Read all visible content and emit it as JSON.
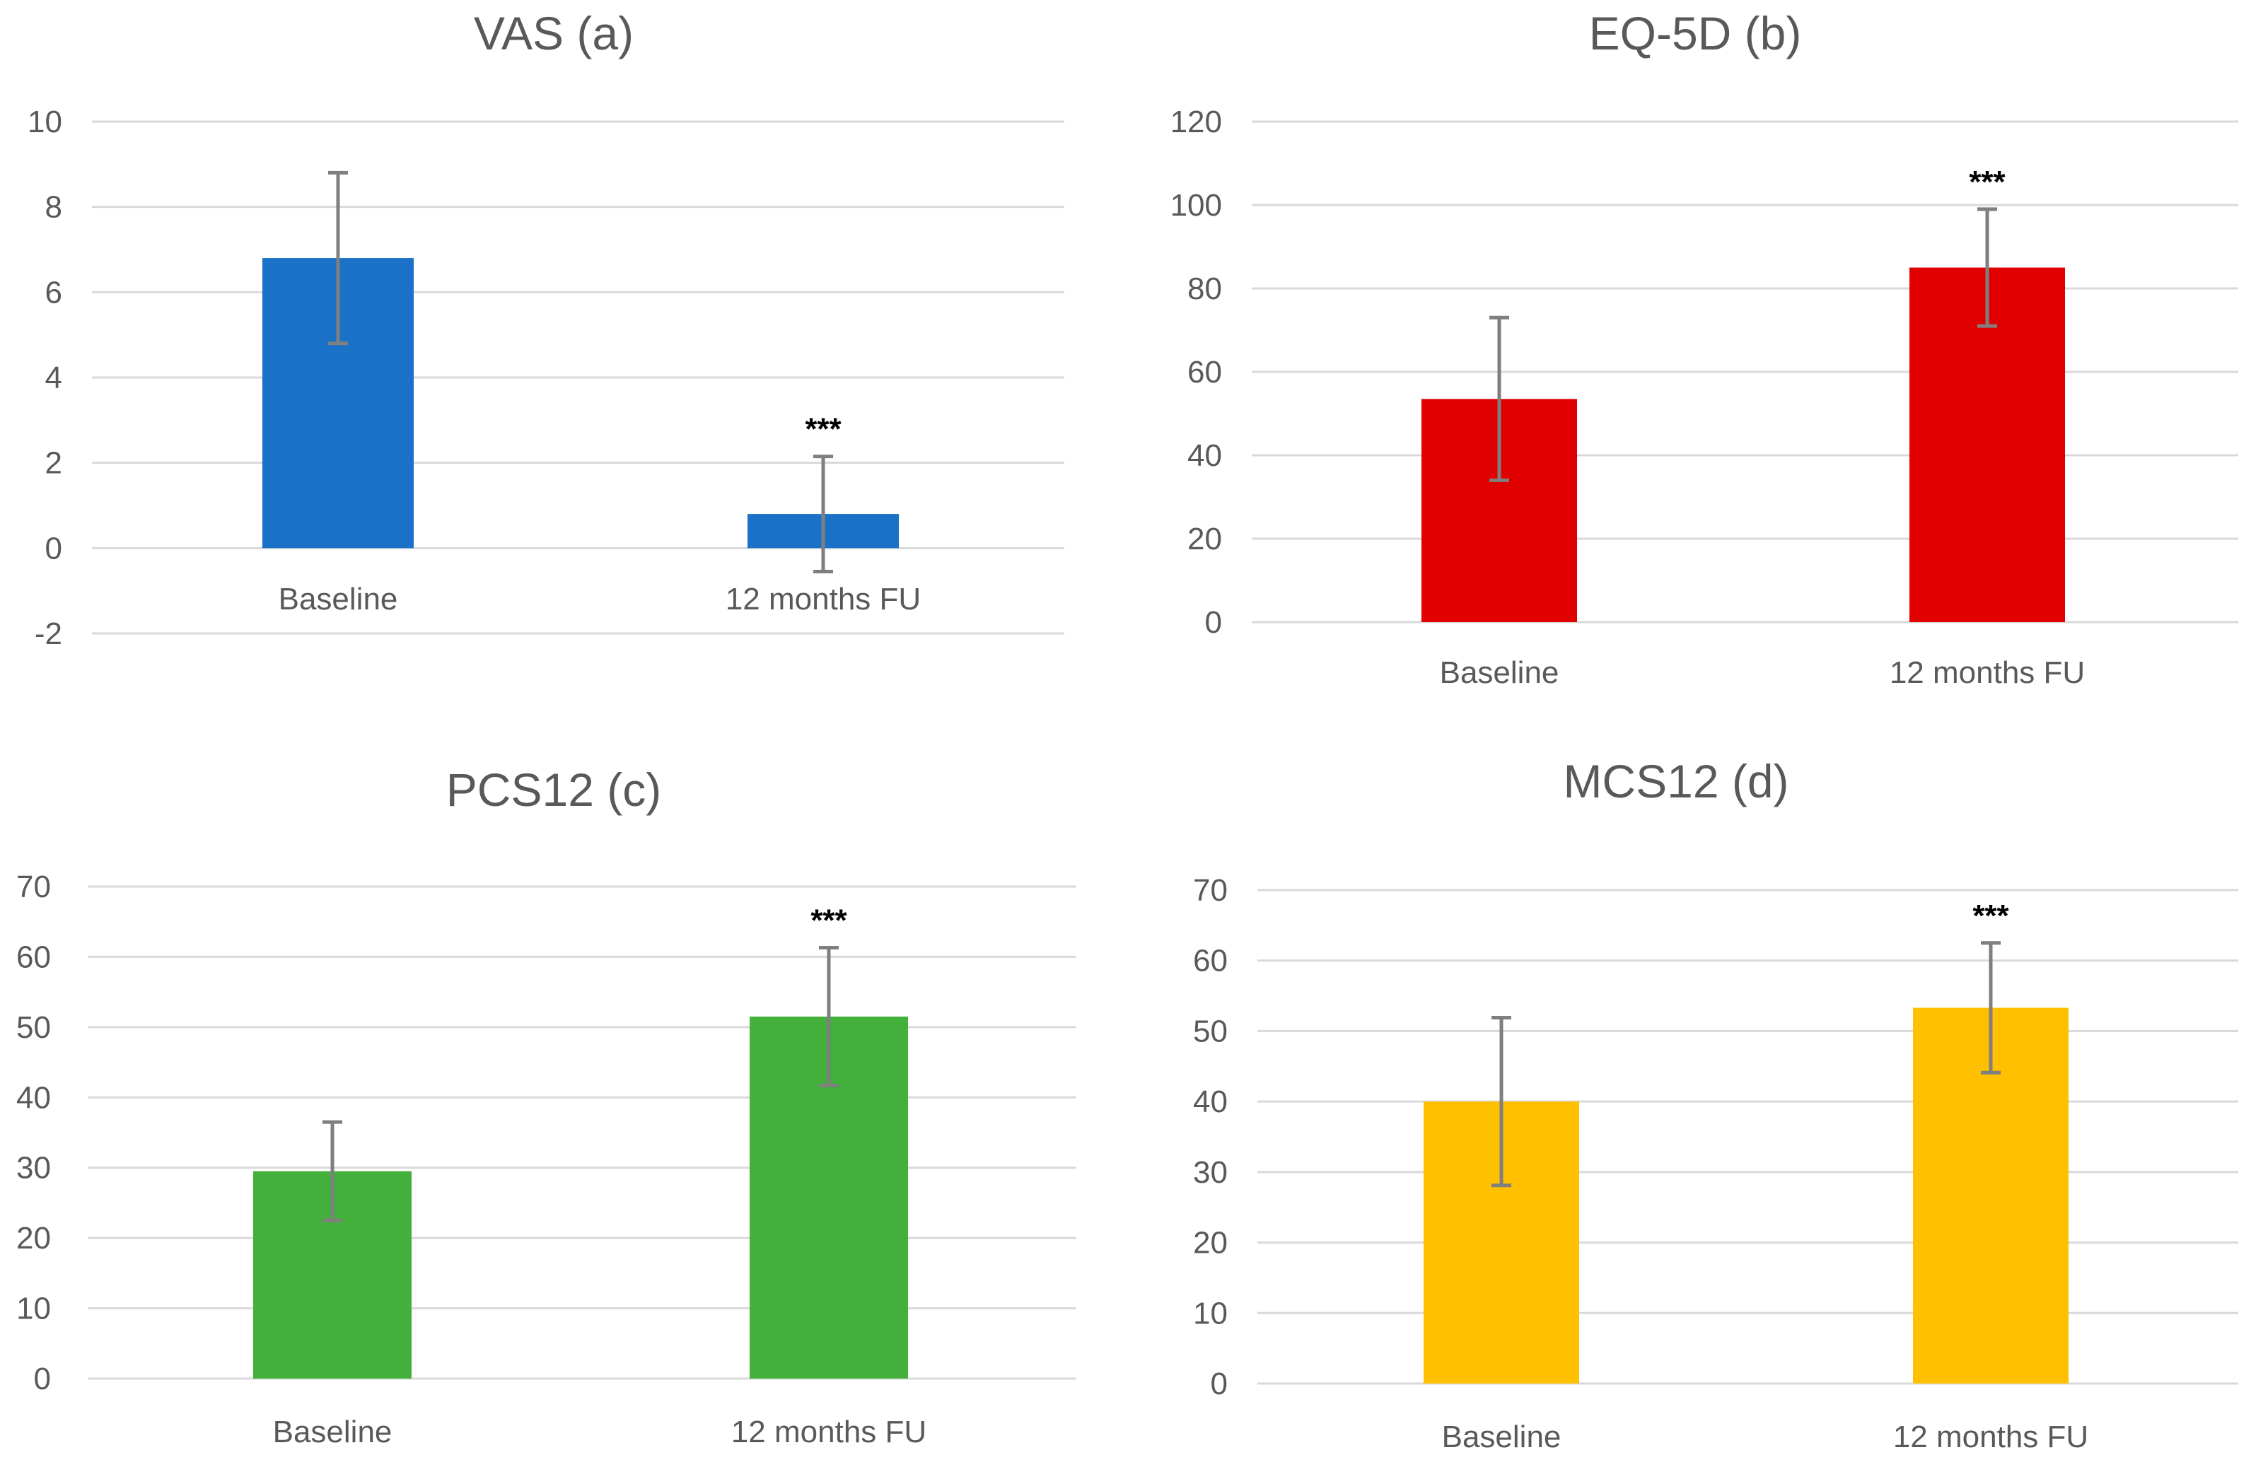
{
  "chart_data": [
    {
      "type": "bar",
      "title": "VAS (a)",
      "categories": [
        "Baseline",
        "12 months FU"
      ],
      "values": [
        6.8,
        0.8
      ],
      "error": [
        2.0,
        1.35
      ],
      "significance": [
        "",
        "***"
      ],
      "color": "#1b71c8",
      "ylim": [
        -2,
        10
      ],
      "yticks": [
        -2,
        0,
        2,
        4,
        6,
        8,
        10
      ],
      "grid": true
    },
    {
      "type": "bar",
      "title": "EQ-5D (b)",
      "categories": [
        "Baseline",
        "12 months FU"
      ],
      "values": [
        53.5,
        85
      ],
      "error": [
        19.5,
        14
      ],
      "significance": [
        "",
        "***"
      ],
      "color": "#e00000",
      "ylim": [
        0,
        120
      ],
      "yticks": [
        0,
        20,
        40,
        60,
        80,
        100,
        120
      ],
      "grid": true
    },
    {
      "type": "bar",
      "title": "PCS12 (c)",
      "categories": [
        "Baseline",
        "12 months FU"
      ],
      "values": [
        29.5,
        51.5
      ],
      "error": [
        7,
        9.8
      ],
      "significance": [
        "",
        "***"
      ],
      "color": "#43b03c",
      "ylim": [
        0,
        70
      ],
      "yticks": [
        0,
        10,
        20,
        30,
        40,
        50,
        60,
        70
      ],
      "grid": true
    },
    {
      "type": "bar",
      "title": "MCS12 (d)",
      "categories": [
        "Baseline",
        "12 months FU"
      ],
      "values": [
        40,
        53.3
      ],
      "error": [
        11.9,
        9.2
      ],
      "significance": [
        "",
        "***"
      ],
      "color": "#ffc000",
      "ylim": [
        0,
        70
      ],
      "yticks": [
        0,
        10,
        20,
        30,
        40,
        50,
        60,
        70
      ],
      "grid": true
    }
  ]
}
